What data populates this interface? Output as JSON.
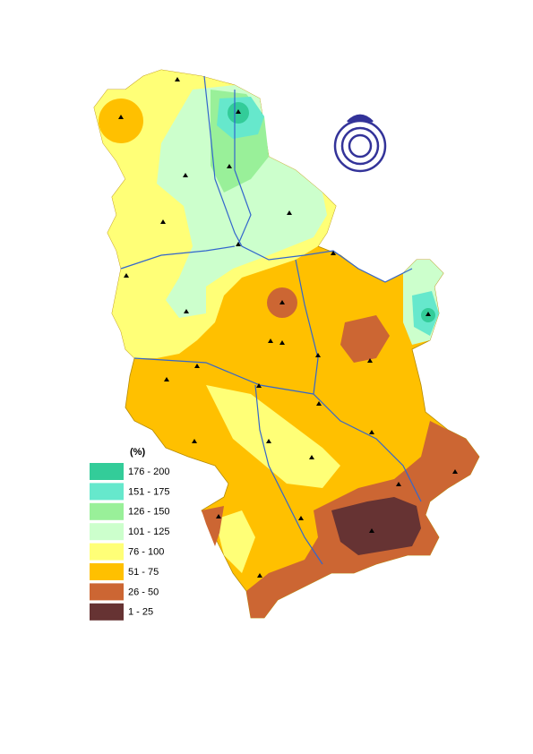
{
  "legend": {
    "title": "(%)",
    "items": [
      {
        "label": "176 - 200",
        "color": "#33cc99"
      },
      {
        "label": "151 - 175",
        "color": "#66e8cc"
      },
      {
        "label": "126 - 150",
        "color": "#99f099"
      },
      {
        "label": "101 - 125",
        "color": "#ccffcc"
      },
      {
        "label": "76 - 100",
        "color": "#ffff77"
      },
      {
        "label": "51 - 75",
        "color": "#ffc000"
      },
      {
        "label": "26 - 50",
        "color": "#cc6633"
      },
      {
        "label": "1 - 25",
        "color": "#663333"
      }
    ]
  }
}
